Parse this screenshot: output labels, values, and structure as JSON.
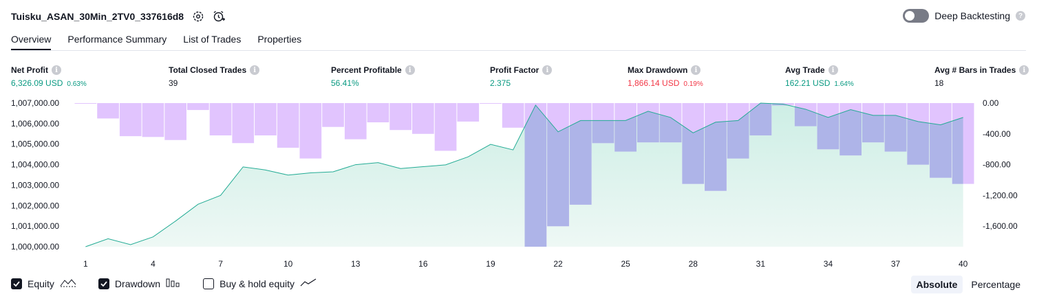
{
  "strategy_title": "Tuisku_ASAN_30Min_2TV0_337616d8",
  "deep_backtesting_label": "Deep Backtesting",
  "tabs": [
    "Overview",
    "Performance Summary",
    "List of Trades",
    "Properties"
  ],
  "metrics": [
    {
      "label": "Net Profit",
      "value": "6,326.09 USD",
      "sub": "0.63%",
      "color": "green"
    },
    {
      "label": "Total Closed Trades",
      "value": "39",
      "sub": "",
      "color": "neutral"
    },
    {
      "label": "Percent Profitable",
      "value": "56.41%",
      "sub": "",
      "color": "green"
    },
    {
      "label": "Profit Factor",
      "value": "2.375",
      "sub": "",
      "color": "green"
    },
    {
      "label": "Max Drawdown",
      "value": "1,866.14 USD",
      "sub": "0.19%",
      "color": "red"
    },
    {
      "label": "Avg Trade",
      "value": "162.21 USD",
      "sub": "1.64%",
      "color": "green"
    },
    {
      "label": "Avg # Bars in Trades",
      "value": "18",
      "sub": "",
      "color": "neutral"
    }
  ],
  "legend": {
    "equity": "Equity",
    "drawdown": "Drawdown",
    "buy_hold": "Buy & hold equity"
  },
  "modes": [
    "Absolute",
    "Percentage"
  ],
  "colors": {
    "equity_line": "#22ab94",
    "equity_fill": "#cdeee5",
    "drawdown": "#e1c4fe",
    "overlap": "#aeb4e8",
    "green": "#089981",
    "red": "#f23645"
  },
  "chart_data": {
    "type": "area",
    "x": [
      1,
      2,
      3,
      4,
      5,
      6,
      7,
      8,
      9,
      10,
      11,
      12,
      13,
      14,
      15,
      16,
      17,
      18,
      19,
      20,
      21,
      22,
      23,
      24,
      25,
      26,
      27,
      28,
      29,
      30,
      31,
      32,
      33,
      34,
      35,
      36,
      37,
      38,
      39,
      40
    ],
    "x_ticks": [
      1,
      4,
      7,
      10,
      13,
      16,
      19,
      22,
      25,
      28,
      31,
      34,
      37,
      40
    ],
    "left_axis": {
      "min": 1000000,
      "max": 1007000,
      "ticks": [
        "1,000,000.00",
        "1,001,000.00",
        "1,002,000.00",
        "1,003,000.00",
        "1,004,000.00",
        "1,005,000.00",
        "1,006,000.00",
        "1,007,000.00"
      ]
    },
    "right_axis": {
      "min": -1866.14,
      "max": 0,
      "ticks": [
        "0.00",
        "-400.00",
        "-800.00",
        "-1,200.00",
        "-1,600.00"
      ]
    },
    "series": [
      {
        "name": "Equity",
        "type": "line",
        "axis": "left",
        "values": [
          1000000,
          1000390,
          1000100,
          1000480,
          1001250,
          1002070,
          1002500,
          1003890,
          1003740,
          1003490,
          1003600,
          1003650,
          1004000,
          1004100,
          1003810,
          1003900,
          1003990,
          1004380,
          1004990,
          1004720,
          1006900,
          1005600,
          1006150,
          1006150,
          1006150,
          1006600,
          1006300,
          1005550,
          1006070,
          1006150,
          1007000,
          1006950,
          1006700,
          1006300,
          1006680,
          1006400,
          1006400,
          1006100,
          1005940,
          1006300
        ]
      },
      {
        "name": "Drawdown",
        "type": "bar",
        "axis": "right",
        "values": [
          0,
          -200,
          -430,
          -440,
          -480,
          -90,
          -420,
          -520,
          -420,
          -580,
          -720,
          -310,
          -470,
          -250,
          -350,
          -400,
          -620,
          -240,
          0,
          -320,
          -1866.14,
          -1600,
          -1320,
          -520,
          -630,
          -510,
          -510,
          -1050,
          -1140,
          -720,
          -420,
          -30,
          -300,
          -600,
          -680,
          -510,
          -630,
          -800,
          -970,
          -1050
        ]
      }
    ]
  }
}
